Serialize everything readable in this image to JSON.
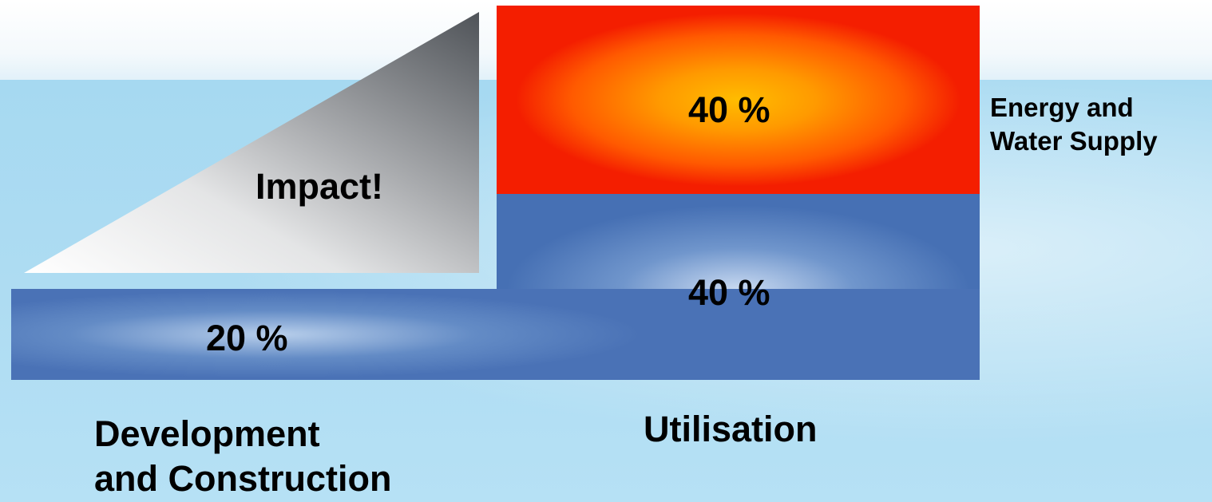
{
  "diagram": {
    "impact_label": "Impact!",
    "development": {
      "percent": "20 %",
      "label_line1": "Development",
      "label_line2": "and Construction"
    },
    "utilisation": {
      "percent": "40 %",
      "label": "Utilisation"
    },
    "energy_water": {
      "percent": "40 %",
      "label_line1": "Energy and",
      "label_line2": "Water Supply"
    },
    "colors": {
      "background": "#aedcf2",
      "blue_block": "#4a72b6",
      "red_block": "#f41e00",
      "orange_center": "#ffbc00",
      "impact_dark": "#4f5358",
      "impact_light": "#ffffff"
    }
  }
}
